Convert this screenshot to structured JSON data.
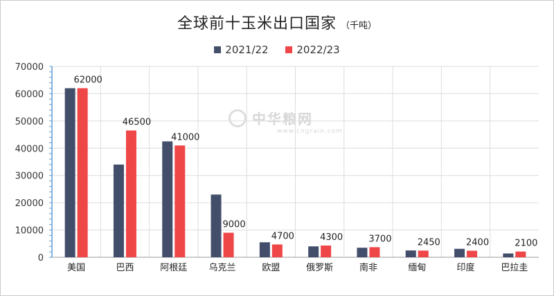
{
  "header": {
    "title": "全球前十玉米出口国家",
    "subtitle": "（千吨）"
  },
  "watermark": {
    "name": "中华粮网",
    "url": "www.cngrain.com"
  },
  "colors": {
    "series1": "#434e6b",
    "series2": "#ef4648",
    "grid": "#dcdcdc",
    "axis": "#5b9bd5"
  },
  "chart_data": {
    "type": "bar",
    "title": "全球前十玉米出口国家",
    "unit": "千吨",
    "categories": [
      "美国",
      "巴西",
      "阿根廷",
      "乌克兰",
      "欧盟",
      "俄罗斯",
      "南非",
      "缅甸",
      "印度",
      "巴拉圭"
    ],
    "series": [
      {
        "name": "2021/22",
        "values": [
          62000,
          34000,
          42500,
          23000,
          5500,
          4000,
          3500,
          2500,
          3100,
          1400
        ]
      },
      {
        "name": "2022/23",
        "values": [
          62000,
          46500,
          41000,
          9000,
          4700,
          4300,
          3700,
          2450,
          2400,
          2100
        ]
      }
    ],
    "data_labels": [
      "62000",
      "46500",
      "41000",
      "9000",
      "4700",
      "4300",
      "3700",
      "2450",
      "2400",
      "2100"
    ],
    "ylim": [
      0,
      70000
    ],
    "yticks": [
      0,
      10000,
      20000,
      30000,
      40000,
      50000,
      60000,
      70000
    ],
    "legend_position": "top-center",
    "grid": true
  }
}
